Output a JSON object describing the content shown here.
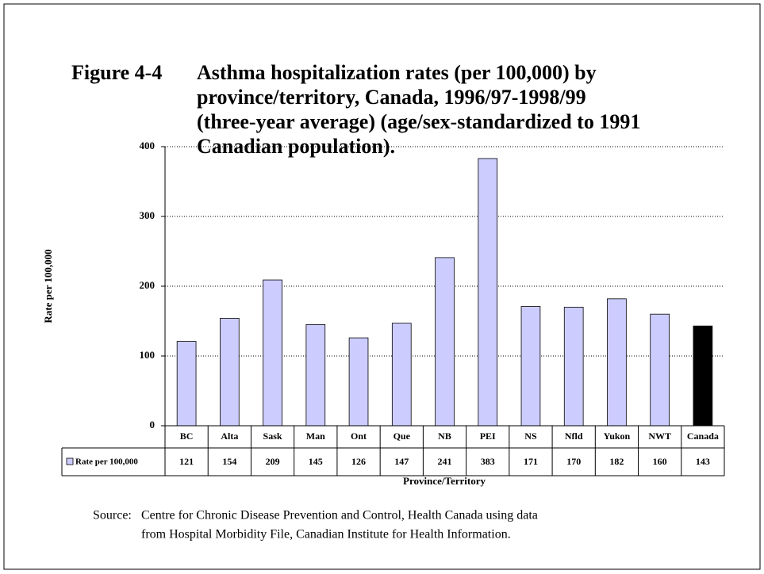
{
  "chart_data": {
    "type": "bar",
    "figure_label": "Figure 4-4",
    "title": [
      "Asthma hospitalization rates (per 100,000) by",
      "province/territory, Canada, 1996/97-1998/99",
      "(three-year average) (age/sex-standardized to 1991",
      "Canadian population)."
    ],
    "y_label": "Rate per 100,000",
    "x_label": "Province/Territory",
    "categories": [
      "BC",
      "Alta",
      "Sask",
      "Man",
      "Ont",
      "Que",
      "NB",
      "PEI",
      "NS",
      "Nfld",
      "Yukon",
      "NWT",
      "Canada"
    ],
    "series": [
      {
        "name": "Rate per 100,000",
        "color": "#ccccff",
        "colors": [
          "#ccccff",
          "#ccccff",
          "#ccccff",
          "#ccccff",
          "#ccccff",
          "#ccccff",
          "#ccccff",
          "#ccccff",
          "#ccccff",
          "#ccccff",
          "#ccccff",
          "#ccccff",
          "#000000"
        ],
        "values": [
          121,
          154,
          209,
          145,
          126,
          147,
          241,
          383,
          171,
          170,
          182,
          160,
          143
        ]
      }
    ],
    "ylim": [
      0,
      400
    ],
    "yticks": [
      0,
      100,
      200,
      300,
      400
    ],
    "grid": true,
    "source_label": "Source:",
    "source_lines": [
      "Centre for Chronic Disease Prevention and Control, Health Canada using data",
      "from Hospital Morbidity File, Canadian Institute for Health Information."
    ]
  }
}
